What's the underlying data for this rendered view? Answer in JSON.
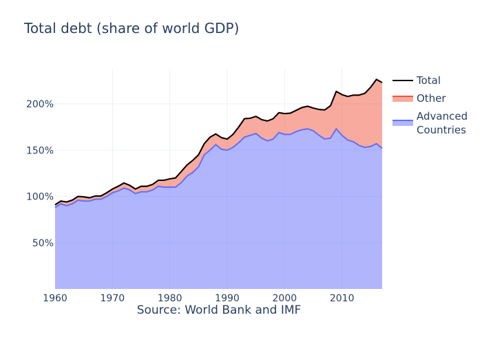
{
  "title": "Total debt (share of world GDP)",
  "source": "Source: World Bank and IMF",
  "legend": [
    {
      "label": "Total",
      "color": "#000000",
      "fill": null
    },
    {
      "label": "Other",
      "color": "#ef553b",
      "fill": "rgba(239,85,59,0.5)"
    },
    {
      "label": "Advanced Countries",
      "color": "#636efa",
      "fill": "rgba(99,110,250,0.5)"
    }
  ],
  "axes": {
    "x_ticks": [
      "1960",
      "1970",
      "1980",
      "1990",
      "2000",
      "2010"
    ],
    "y_ticks": [
      "50%",
      "100%",
      "150%",
      "200%"
    ]
  },
  "chart_data": {
    "type": "area",
    "title": "Total debt (share of world GDP)",
    "xlabel": "Source: World Bank and IMF",
    "ylabel": "",
    "xlim": [
      1960,
      2017
    ],
    "ylim": [
      0,
      238
    ],
    "grid": true,
    "legend_position": "right",
    "x": [
      1960,
      1961,
      1962,
      1963,
      1964,
      1965,
      1966,
      1967,
      1968,
      1969,
      1970,
      1971,
      1972,
      1973,
      1974,
      1975,
      1976,
      1977,
      1978,
      1979,
      1980,
      1981,
      1982,
      1983,
      1984,
      1985,
      1986,
      1987,
      1988,
      1989,
      1990,
      1991,
      1992,
      1993,
      1994,
      1995,
      1996,
      1997,
      1998,
      1999,
      2000,
      2001,
      2002,
      2003,
      2004,
      2005,
      2006,
      2007,
      2008,
      2009,
      2010,
      2011,
      2012,
      2013,
      2014,
      2015,
      2016,
      2017
    ],
    "series": [
      {
        "name": "Advanced Countries",
        "values": [
          88,
          92,
          90,
          92,
          96,
          95,
          95,
          97,
          97,
          100,
          104,
          106,
          109,
          107,
          103,
          105,
          105,
          107,
          111,
          110,
          110,
          110,
          115,
          122,
          126,
          132,
          145,
          150,
          156,
          151,
          150,
          153,
          158,
          164,
          166,
          168,
          163,
          160,
          162,
          169,
          167,
          167,
          170,
          172,
          173,
          171,
          166,
          162,
          163,
          173,
          166,
          161,
          159,
          155,
          153,
          154,
          157,
          152
        ]
      },
      {
        "name": "Other",
        "values": [
          3,
          3,
          4,
          4,
          4,
          4.5,
          3.5,
          3.5,
          3.5,
          4,
          4,
          5,
          5.5,
          5,
          5,
          6,
          6,
          6,
          6.5,
          7.5,
          9,
          10,
          12,
          12,
          13,
          13,
          12,
          14,
          11.5,
          12.5,
          12,
          14,
          17,
          20,
          18.5,
          18.5,
          20,
          21.5,
          22,
          21.5,
          22.5,
          23,
          23,
          24,
          24.5,
          24.5,
          28,
          31.5,
          35,
          40.5,
          44,
          47,
          50.5,
          54.5,
          58.5,
          64,
          69.5,
          71
        ]
      },
      {
        "name": "Total",
        "values": [
          91,
          95,
          94,
          96,
          100,
          99.5,
          98.5,
          100.5,
          100.5,
          104,
          108,
          111,
          114.5,
          112,
          108,
          111,
          111,
          113,
          117.5,
          117.5,
          119,
          120,
          127,
          134,
          139,
          145,
          157,
          164,
          167.5,
          163.5,
          162,
          167,
          175,
          184,
          184.5,
          186.5,
          183,
          181.5,
          184,
          190.5,
          189.5,
          190,
          193,
          196,
          197.5,
          195.5,
          194,
          193.5,
          198,
          213.5,
          210,
          208,
          209.5,
          209.5,
          211.5,
          218,
          226.5,
          223
        ]
      }
    ],
    "y_tick_labels": [
      "50%",
      "100%",
      "150%",
      "200%"
    ],
    "x_tick_labels": [
      "1960",
      "1970",
      "1980",
      "1990",
      "2000",
      "2010"
    ]
  }
}
